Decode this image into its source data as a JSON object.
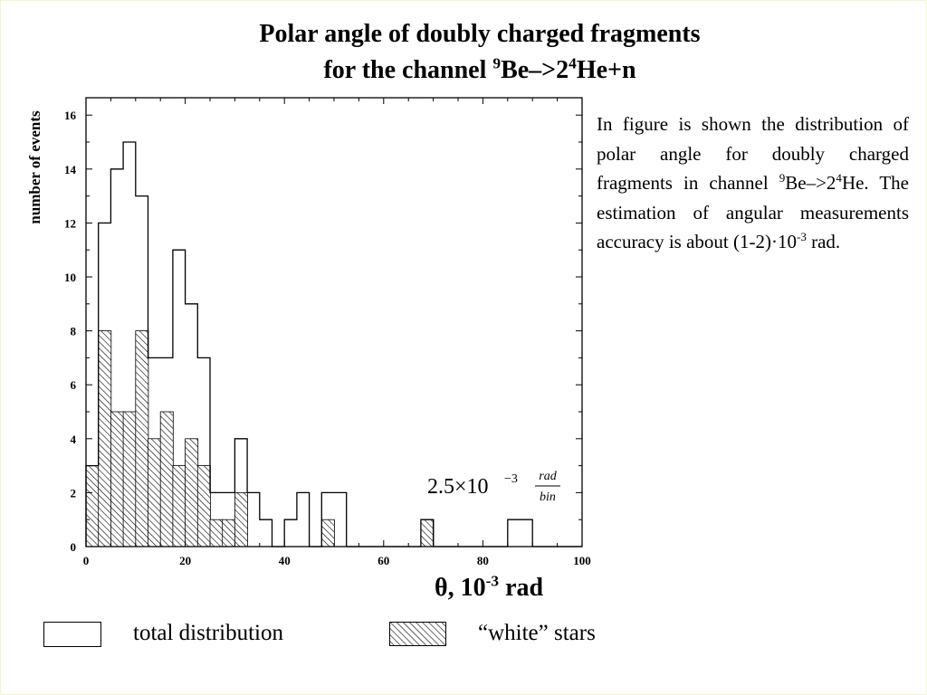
{
  "title_line1": "Polar angle of doubly charged fragments",
  "title_line2_prefix": "for the channel ",
  "title_sup9": "9",
  "title_be": "Be–>2",
  "title_sup4": "4",
  "title_he": "He+n",
  "description": {
    "part1": "In figure is shown the distribution of polar angle for doubly charged fragments in channel ",
    "sup9": "9",
    "part2": "Be–>2",
    "sup4": "4",
    "part3": "He. The estimation of angular measurements accuracy is about (1-2)·10",
    "supexp": "-3",
    "part4": " rad."
  },
  "xlabel_prefix": "θ, 10",
  "xlabel_sup": "-3",
  "xlabel_suffix": " rad",
  "annotation": {
    "base": "2.5×10",
    "exp": "−3",
    "num": "rad",
    "den": "bin"
  },
  "legend": {
    "total": "total distribution",
    "white": "“white” stars"
  },
  "chart_data": {
    "type": "bar",
    "bin_width": 2.5,
    "xlim": [
      0,
      100
    ],
    "ylim": [
      0,
      16.5
    ],
    "xticks": [
      0,
      20,
      40,
      60,
      80,
      100
    ],
    "yticks": [
      0,
      2,
      4,
      6,
      8,
      10,
      12,
      14,
      16
    ],
    "ylabel": "number of events",
    "series": [
      {
        "name": "total distribution",
        "fill": "none",
        "x": [
          0,
          2.5,
          5,
          7.5,
          10,
          12.5,
          15,
          17.5,
          20,
          22.5,
          25,
          27.5,
          30,
          32.5,
          35,
          37.5,
          40,
          42.5,
          45,
          47.5,
          50,
          52.5,
          55,
          57.5,
          60,
          62.5,
          65,
          67.5,
          70,
          72.5,
          75,
          77.5,
          80,
          82.5,
          85,
          87.5,
          90,
          92.5,
          95,
          97.5
        ],
        "values": [
          3,
          12,
          14,
          15,
          13,
          7,
          7,
          11,
          9,
          7,
          2,
          2,
          4,
          2,
          1,
          0,
          1,
          2,
          0,
          2,
          2,
          0,
          0,
          0,
          0,
          0,
          0,
          1,
          0,
          0,
          0,
          0,
          0,
          0,
          1,
          1,
          0,
          0,
          0,
          0
        ]
      },
      {
        "name": "“white” stars",
        "fill": "hatch",
        "x": [
          0,
          2.5,
          5,
          7.5,
          10,
          12.5,
          15,
          17.5,
          20,
          22.5,
          25,
          27.5,
          30,
          32.5,
          35,
          37.5,
          40,
          42.5,
          45,
          47.5,
          50,
          52.5,
          55,
          57.5,
          60,
          62.5,
          65,
          67.5,
          70,
          72.5,
          75,
          77.5,
          80,
          82.5,
          85,
          87.5,
          90,
          92.5,
          95,
          97.5
        ],
        "values": [
          3,
          8,
          5,
          5,
          8,
          4,
          5,
          3,
          4,
          3,
          1,
          1,
          2,
          0,
          0,
          0,
          0,
          0,
          0,
          1,
          0,
          0,
          0,
          0,
          0,
          0,
          0,
          1,
          0,
          0,
          0,
          0,
          0,
          0,
          0,
          0,
          0,
          0,
          0,
          0
        ]
      }
    ]
  }
}
